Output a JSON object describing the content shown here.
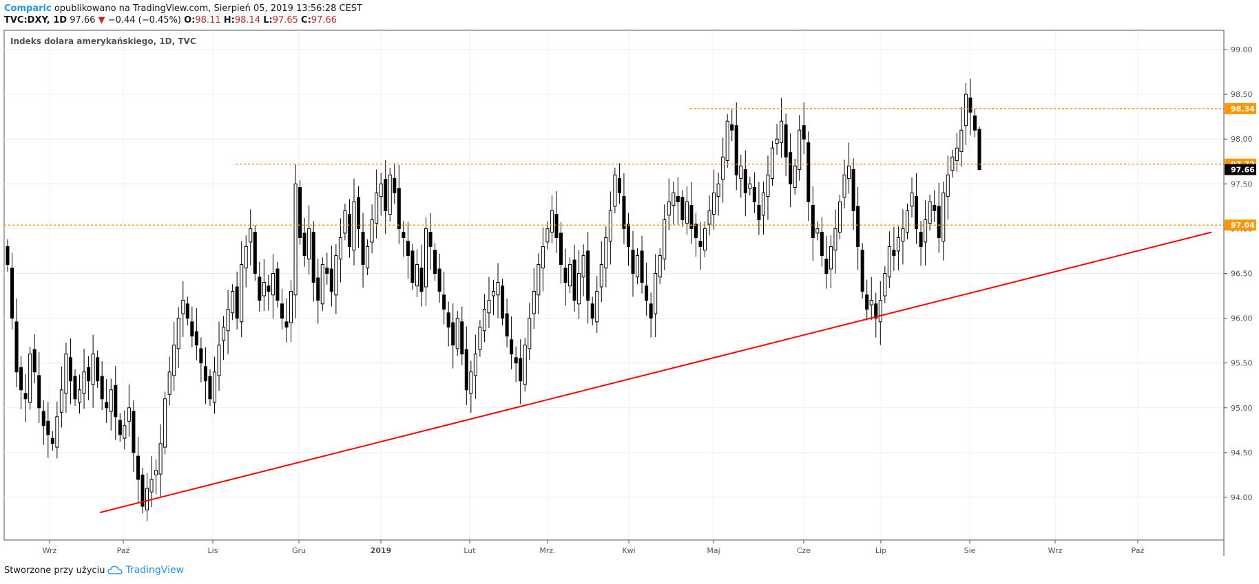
{
  "header": {
    "author": "Comparic",
    "published_text": "opublikowano na TradingView.com, Sierpień 05, 2019 13:56:28 CEST",
    "symbol": "TVC:DXY, 1D",
    "last": "97.66",
    "change": "−0.44 (−0.45%)",
    "o_label": "O:",
    "o_value": "98.11",
    "h_label": "H:",
    "h_value": "98.14",
    "l_label": "L:",
    "l_value": "97.65",
    "c_label": "C:",
    "c_value": "97.66"
  },
  "footer": {
    "created_with": "Stworzone przy użyciu",
    "brand": "TradingView"
  },
  "colors": {
    "support_line": "#ff0000",
    "level_line": "#ff9800",
    "candle_up": "#ffffff",
    "candle_down": "#000000",
    "grid": "#e9ecf0"
  },
  "chart_data": {
    "type": "candlestick",
    "title": "Indeks dolara amerykańskiego, 1D, TVC",
    "y_ticks": [
      "94.00",
      "94.50",
      "95.00",
      "95.50",
      "96.00",
      "96.50",
      "97.00",
      "97.50",
      "98.00",
      "98.50",
      "99.00"
    ],
    "x_ticks": [
      "Wrz",
      "Paź",
      "Lis",
      "Gru",
      "2019",
      "Lut",
      "Mrz.",
      "Kwi",
      "Maj",
      "Cze",
      "Lip",
      "Sie",
      "Wrz",
      "Paź"
    ],
    "ylim": [
      93.55,
      99.25
    ],
    "grid": true,
    "closes": [
      96.6,
      96.0,
      95.4,
      95.2,
      95.1,
      95.6,
      95.4,
      95.0,
      94.8,
      94.7,
      94.6,
      94.9,
      95.2,
      95.6,
      95.3,
      95.1,
      95.2,
      95.4,
      95.3,
      95.6,
      95.3,
      95.1,
      95.0,
      95.2,
      94.9,
      94.7,
      94.8,
      95.0,
      94.5,
      94.2,
      93.9,
      94.1,
      94.2,
      94.3,
      94.6,
      95.1,
      95.4,
      95.7,
      96.0,
      96.2,
      96.0,
      95.8,
      95.7,
      95.5,
      95.3,
      95.1,
      95.4,
      95.7,
      95.9,
      96.1,
      96.3,
      96.0,
      96.6,
      96.8,
      97.0,
      96.5,
      96.2,
      96.4,
      96.3,
      96.5,
      96.2,
      96.0,
      95.9,
      96.3,
      97.5,
      96.9,
      96.7,
      97.0,
      96.4,
      96.2,
      96.6,
      96.5,
      96.3,
      96.7,
      96.9,
      97.2,
      96.8,
      97.3,
      97.0,
      96.6,
      96.8,
      97.1,
      97.4,
      97.5,
      97.2,
      97.6,
      97.4,
      97.0,
      96.9,
      96.7,
      96.4,
      96.6,
      96.3,
      97.0,
      96.8,
      96.5,
      96.3,
      96.1,
      95.9,
      95.7,
      96.0,
      95.6,
      95.2,
      95.4,
      95.6,
      95.9,
      96.1,
      96.2,
      96.3,
      96.4,
      96.0,
      95.8,
      95.6,
      95.5,
      95.3,
      95.7,
      96.0,
      96.3,
      96.6,
      96.8,
      97.0,
      97.2,
      96.9,
      96.6,
      96.4,
      96.6,
      96.2,
      96.5,
      96.7,
      96.2,
      96.0,
      96.3,
      96.6,
      96.9,
      97.2,
      97.6,
      97.4,
      97.0,
      96.8,
      96.5,
      96.7,
      96.4,
      96.2,
      96.0,
      96.5,
      96.7,
      97.1,
      97.3,
      97.4,
      97.3,
      97.1,
      97.3,
      97.0,
      96.9,
      96.8,
      97.0,
      97.2,
      97.4,
      97.5,
      97.8,
      98.2,
      98.1,
      97.6,
      97.7,
      97.4,
      97.5,
      97.3,
      97.1,
      97.4,
      97.6,
      97.9,
      98.0,
      98.2,
      97.8,
      97.5,
      97.7,
      98.1,
      98.0,
      97.3,
      96.9,
      97.0,
      96.7,
      96.5,
      96.8,
      97.0,
      97.3,
      97.6,
      97.7,
      97.2,
      96.8,
      96.3,
      96.1,
      96.2,
      96.0,
      96.2,
      96.5,
      96.8,
      96.7,
      96.9,
      97.0,
      97.2,
      97.4,
      97.0,
      96.8,
      97.1,
      97.3,
      97.2,
      96.9,
      97.4,
      97.6,
      97.8,
      97.9,
      98.1,
      98.5,
      98.3,
      98.1,
      97.66
    ]
  }
}
